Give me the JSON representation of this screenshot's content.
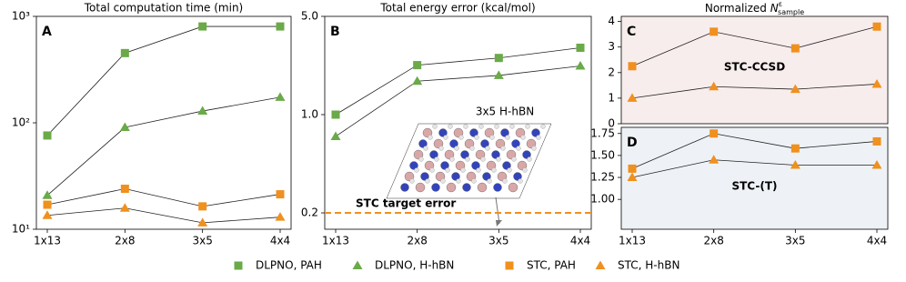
{
  "chart_data": [
    {
      "type": "line",
      "label": "A",
      "title": "Total computation time (min)",
      "log_y": true,
      "categories": [
        "1x13",
        "2x8",
        "3x5",
        "4x4"
      ],
      "ylim": [
        10,
        1000
      ],
      "yticks": [
        {
          "value": 10,
          "label": "10¹"
        },
        {
          "value": 100,
          "label": "10²"
        },
        {
          "value": 1000,
          "label": "10³"
        }
      ],
      "series": [
        {
          "name": "DLPNO, PAH",
          "color": "#6aaa48",
          "marker": "square",
          "values": [
            76,
            452,
            804,
            804
          ]
        },
        {
          "name": "DLPNO, H-hBN",
          "color": "#6aaa48",
          "marker": "triangle",
          "values": [
            20.8,
            90.6,
            129,
            174
          ]
        },
        {
          "name": "STC, PAH",
          "color": "#f0901e",
          "marker": "square",
          "values": [
            17,
            24,
            16.4,
            21.3
          ]
        },
        {
          "name": "STC, H-hBN",
          "color": "#f0901e",
          "marker": "triangle",
          "values": [
            13.5,
            15.8,
            11.5,
            13
          ]
        }
      ]
    },
    {
      "type": "line",
      "label": "B",
      "title": "Total energy error (kcal/mol)",
      "log_y": true,
      "categories": [
        "1x13",
        "2x8",
        "3x5",
        "4x4"
      ],
      "ylim": [
        0.153,
        5.0
      ],
      "yticks": [
        {
          "value": 0.2,
          "label": "0.2"
        },
        {
          "value": 1,
          "label": "1.0"
        },
        {
          "value": 5,
          "label": "5.0"
        }
      ],
      "series": [
        {
          "name": "DLPNO, PAH",
          "color": "#6aaa48",
          "marker": "square",
          "values": [
            1.0,
            2.25,
            2.53,
            2.99
          ]
        },
        {
          "name": "DLPNO, H-hBN",
          "color": "#6aaa48",
          "marker": "triangle",
          "values": [
            0.7,
            1.73,
            1.9,
            2.22
          ]
        }
      ],
      "hlines": [
        {
          "y": 0.2,
          "label": "STC target error",
          "color": "#f0901e"
        }
      ],
      "inset_label": "3x5 H-hBN"
    },
    {
      "type": "line",
      "label": "C",
      "title_prefix": "Normalized ",
      "title_var": "N",
      "title_sup": "ε",
      "title_sub": "sample",
      "background": "#f8eded",
      "ylim": [
        0,
        4.2
      ],
      "yticks": [
        0,
        1,
        2,
        3,
        4
      ],
      "annotation": {
        "text": "STC-CCSD",
        "color": "#b5535a"
      },
      "series": [
        {
          "name": "STC, PAH",
          "color": "#f0901e",
          "marker": "square",
          "values": [
            2.25,
            3.6,
            2.95,
            3.8
          ]
        },
        {
          "name": "STC, H-hBN",
          "color": "#f0901e",
          "marker": "triangle",
          "values": [
            1.0,
            1.45,
            1.35,
            1.55
          ]
        }
      ]
    },
    {
      "type": "line",
      "label": "D",
      "background": "#eef2f6",
      "categories": [
        "1x13",
        "2x8",
        "3x5",
        "4x4"
      ],
      "ylim": [
        0.66,
        1.82
      ],
      "yticks": [
        {
          "value": 1,
          "label": "1.00"
        },
        {
          "value": 1.25,
          "label": "1.25"
        },
        {
          "value": 1.5,
          "label": "1.50"
        },
        {
          "value": 1.75,
          "label": "1.75"
        }
      ],
      "annotation": {
        "text": "STC-(T)",
        "color": "#7f9bbd"
      },
      "series": [
        {
          "name": "STC, PAH",
          "color": "#f0901e",
          "marker": "square",
          "values": [
            1.35,
            1.75,
            1.58,
            1.66
          ]
        },
        {
          "name": "STC, H-hBN",
          "color": "#f0901e",
          "marker": "triangle",
          "values": [
            1.25,
            1.45,
            1.39,
            1.39
          ]
        }
      ]
    }
  ]
}
